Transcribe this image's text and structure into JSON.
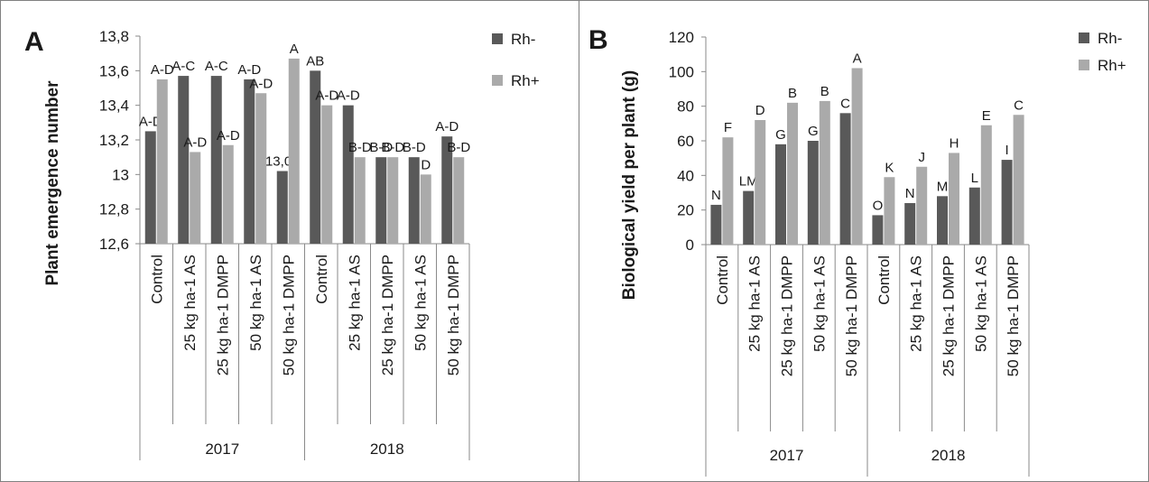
{
  "colors": {
    "rh_minus": "#595959",
    "rh_plus": "#aaaaaa"
  },
  "chart_data": [
    {
      "type": "bar",
      "panel_label": "A",
      "ylabel": "Plant emergence number",
      "ylim": [
        12.6,
        13.8
      ],
      "yticks": [
        "12,6",
        "12,8",
        "13",
        "13,2",
        "13,4",
        "13,6",
        "13,8"
      ],
      "grid": false,
      "legend": "top-right",
      "groups": [
        "2017",
        "2018"
      ],
      "categories": [
        "Control",
        "25 kg ha-1 AS",
        "25 kg ha-1 DMPP",
        "50 kg ha-1 AS",
        "50 kg ha-1 DMPP",
        "Control",
        "25 kg ha-1 AS",
        "25 kg ha-1 DMPP",
        "50 kg ha-1 AS",
        "50 kg ha-1 DMPP"
      ],
      "series": [
        {
          "name": "Rh-",
          "values": [
            13.25,
            13.57,
            13.57,
            13.55,
            13.02,
            13.6,
            13.4,
            13.1,
            13.1,
            13.22
          ],
          "labels": [
            "A-D",
            "A-C",
            "A-C",
            "A-D",
            "13,02",
            "AB",
            "A-D",
            "B-D",
            "B-D",
            "A-D"
          ]
        },
        {
          "name": "Rh+",
          "values": [
            13.55,
            13.13,
            13.17,
            13.47,
            13.67,
            13.4,
            13.1,
            13.1,
            13.0,
            13.1
          ],
          "labels": [
            "A-D",
            "A-D",
            "A-D",
            "A-D",
            "A",
            "A-D",
            "B-D",
            "B-D",
            "D",
            "B-D"
          ]
        }
      ]
    },
    {
      "type": "bar",
      "panel_label": "B",
      "ylabel": "Biological yield per plant (g)",
      "ylim": [
        0,
        120
      ],
      "yticks": [
        "0",
        "20",
        "40",
        "60",
        "80",
        "100",
        "120"
      ],
      "grid": false,
      "legend": "top-right",
      "groups": [
        "2017",
        "2018"
      ],
      "categories": [
        "Control",
        "25 kg ha-1 AS",
        "25 kg ha-1 DMPP",
        "50 kg ha-1 AS",
        "50 kg ha-1 DMPP",
        "Control",
        "25 kg ha-1 AS",
        "25 kg ha-1 DMPP",
        "50 kg ha-1 AS",
        "50 kg ha-1 DMPP"
      ],
      "series": [
        {
          "name": "Rh-",
          "values": [
            23,
            31,
            58,
            60,
            76,
            17,
            24,
            28,
            33,
            49
          ],
          "labels": [
            "N",
            "LM",
            "G",
            "G",
            "C",
            "O",
            "N",
            "M",
            "L",
            "I"
          ]
        },
        {
          "name": "Rh+",
          "values": [
            62,
            72,
            82,
            83,
            102,
            39,
            45,
            53,
            69,
            75
          ],
          "labels": [
            "F",
            "D",
            "B",
            "B",
            "A",
            "K",
            "J",
            "H",
            "E",
            "C"
          ]
        }
      ]
    }
  ]
}
